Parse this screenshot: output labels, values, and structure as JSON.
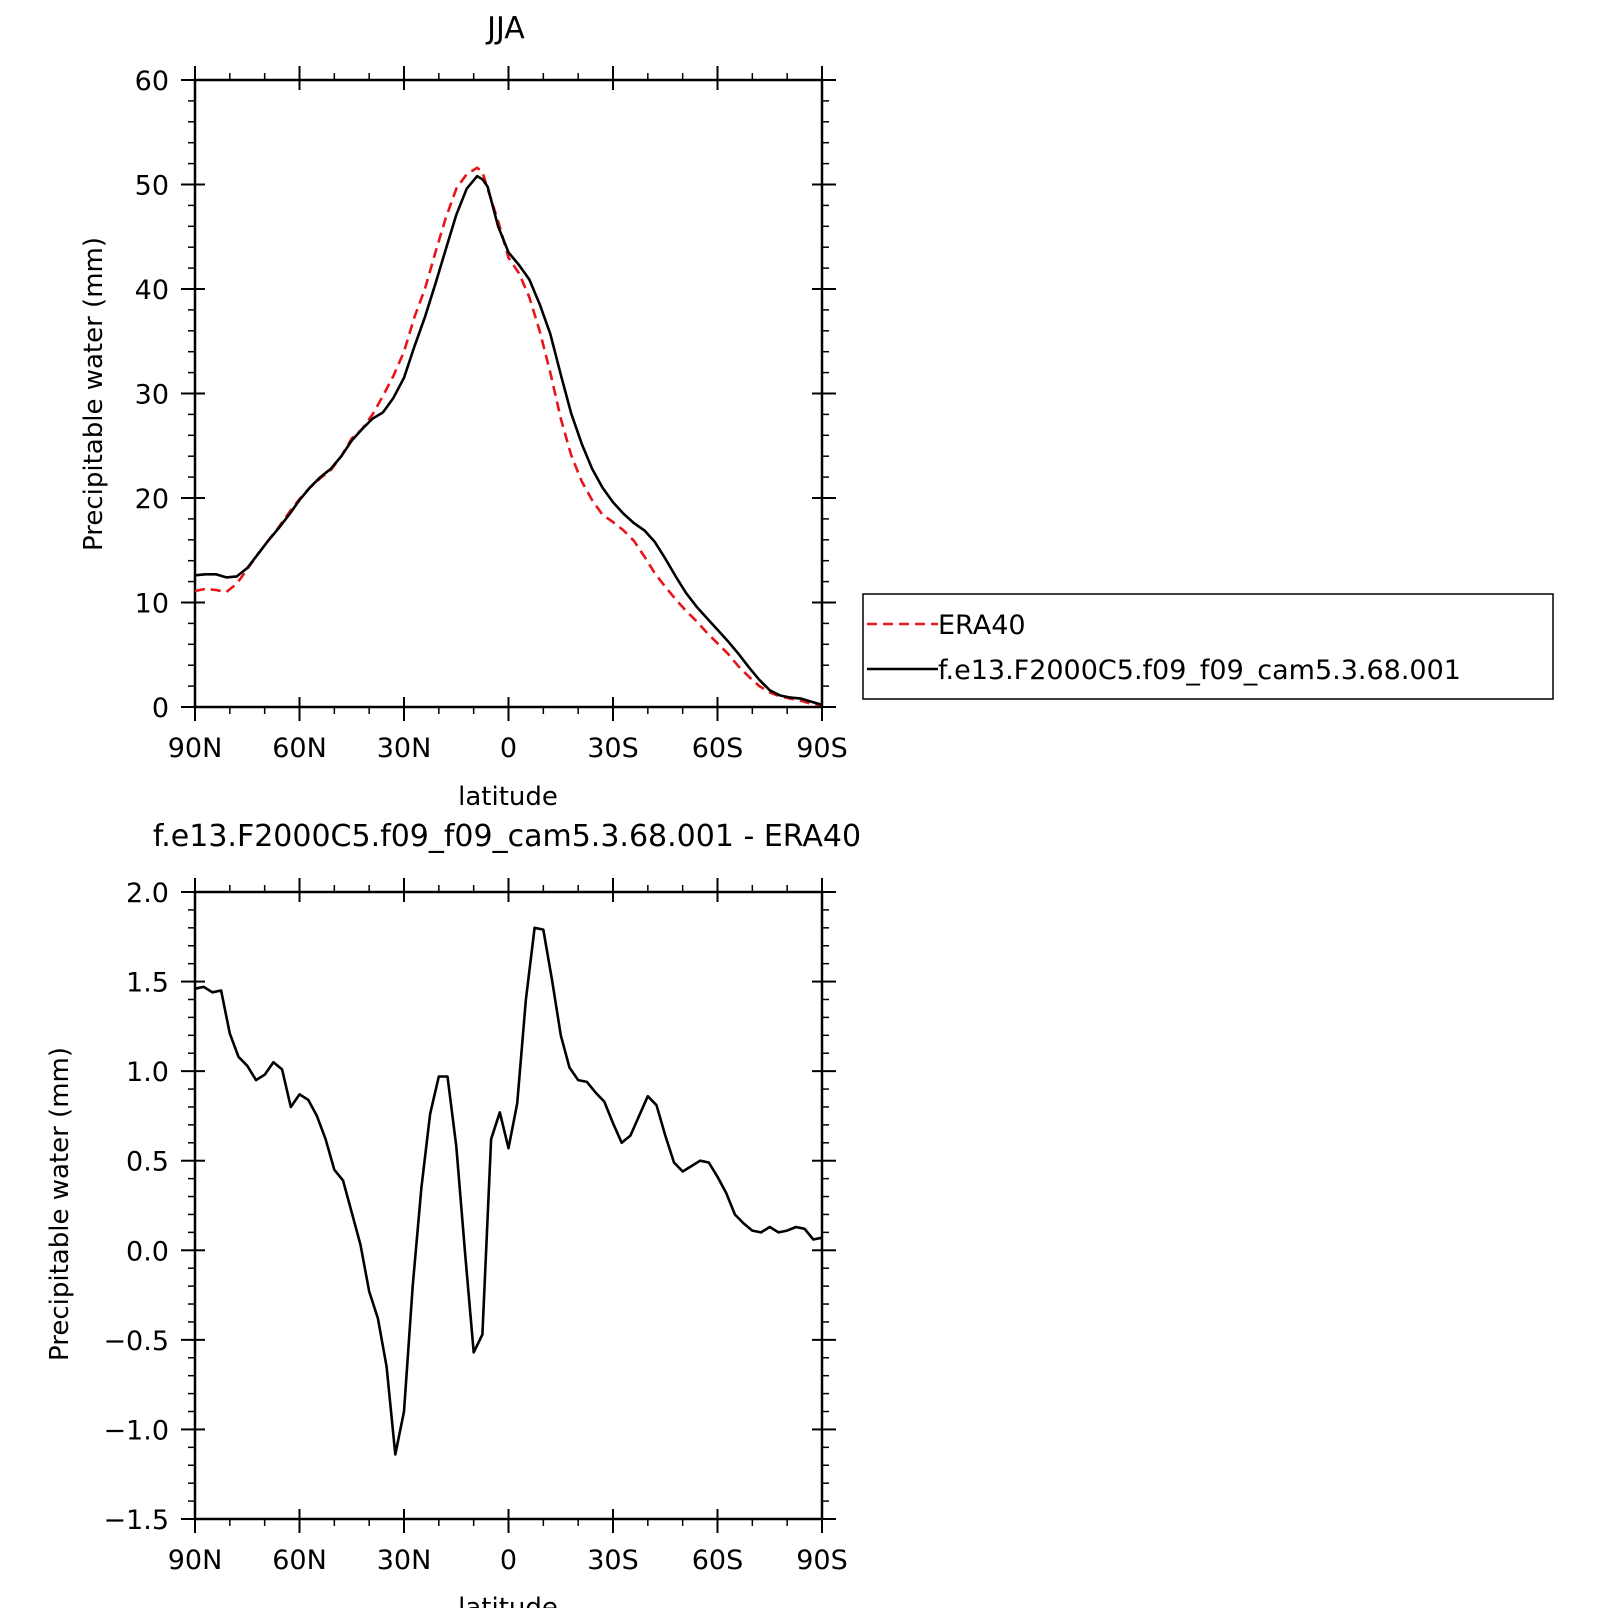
{
  "chart_data": [
    {
      "type": "line",
      "title": "JJA",
      "xlabel": "latitude",
      "ylabel": "Precipitable water (mm)",
      "xlim": [
        90,
        -90
      ],
      "ylim": [
        0,
        60
      ],
      "x_ticks": [
        {
          "value": 90,
          "label": "90N"
        },
        {
          "value": 60,
          "label": "60N"
        },
        {
          "value": 30,
          "label": "30N"
        },
        {
          "value": 0,
          "label": "0"
        },
        {
          "value": -30,
          "label": "30S"
        },
        {
          "value": -60,
          "label": "60S"
        },
        {
          "value": -90,
          "label": "90S"
        }
      ],
      "y_ticks": [
        {
          "value": 0,
          "label": "0"
        },
        {
          "value": 10,
          "label": "10"
        },
        {
          "value": 20,
          "label": "20"
        },
        {
          "value": 30,
          "label": "30"
        },
        {
          "value": 40,
          "label": "40"
        },
        {
          "value": 50,
          "label": "50"
        },
        {
          "value": 60,
          "label": "60"
        }
      ],
      "legend_position": "right",
      "series": [
        {
          "name": "ERA40",
          "color": "#e8141a",
          "dash": "dashed",
          "x": [
            90,
            87,
            84,
            81,
            78,
            75,
            72,
            69,
            66,
            63,
            60,
            57,
            54,
            51,
            48,
            45,
            42,
            39,
            36,
            33,
            30,
            27,
            24,
            21,
            18,
            15,
            12,
            9,
            7.5,
            6,
            3,
            0,
            -3,
            -6,
            -9,
            -12,
            -15,
            -18,
            -21,
            -24,
            -27,
            -30,
            -33,
            -36,
            -39,
            -42,
            -45,
            -48,
            -51,
            -54,
            -57,
            -60,
            -63,
            -66,
            -69,
            -72,
            -75,
            -78,
            -81,
            -84,
            -87,
            -90
          ],
          "y": [
            11.1,
            11.3,
            11.2,
            11.0,
            11.8,
            13.2,
            14.6,
            15.9,
            17.2,
            18.6,
            19.9,
            21.0,
            21.9,
            22.7,
            24.0,
            25.7,
            26.6,
            28.0,
            29.8,
            31.7,
            34.0,
            37.3,
            40.0,
            43.5,
            46.8,
            49.6,
            51.0,
            51.6,
            51.2,
            49.6,
            46.5,
            43.0,
            41.5,
            39.2,
            35.9,
            32.0,
            27.6,
            24.1,
            21.6,
            19.8,
            18.4,
            17.7,
            16.9,
            15.9,
            14.4,
            12.8,
            11.5,
            10.3,
            9.2,
            8.2,
            7.1,
            6.1,
            5.1,
            3.9,
            2.9,
            2.0,
            1.4,
            1.0,
            0.8,
            0.6,
            0.3,
            0.2
          ]
        },
        {
          "name": "f.e13.F2000C5.f09_f09_cam5.3.68.001",
          "color": "#000000",
          "dash": "solid",
          "x": [
            90,
            87,
            84,
            81,
            78,
            75,
            72,
            69,
            66,
            63,
            60,
            57,
            54,
            51,
            48,
            45,
            42,
            39,
            36,
            33,
            30,
            27,
            24,
            21,
            18,
            15,
            12,
            9,
            7.5,
            6,
            3,
            0,
            -3,
            -6,
            -9,
            -12,
            -15,
            -18,
            -21,
            -24,
            -27,
            -30,
            -33,
            -36,
            -39,
            -42,
            -45,
            -48,
            -51,
            -54,
            -57,
            -60,
            -63,
            -66,
            -69,
            -72,
            -75,
            -78,
            -81,
            -84,
            -87,
            -90
          ],
          "y": [
            12.6,
            12.7,
            12.7,
            12.4,
            12.5,
            13.3,
            14.6,
            15.9,
            17.1,
            18.4,
            19.8,
            21.0,
            22.0,
            22.8,
            24.0,
            25.5,
            26.6,
            27.6,
            28.2,
            29.6,
            31.5,
            34.5,
            37.3,
            40.5,
            43.8,
            47.1,
            49.6,
            50.8,
            50.5,
            49.8,
            46.0,
            43.5,
            42.3,
            40.9,
            38.5,
            35.7,
            31.8,
            28.1,
            25.2,
            22.8,
            21.0,
            19.6,
            18.5,
            17.6,
            16.9,
            15.8,
            14.2,
            12.5,
            10.9,
            9.6,
            8.5,
            7.4,
            6.3,
            5.1,
            3.8,
            2.6,
            1.6,
            1.1,
            0.9,
            0.8,
            0.5,
            0.2
          ]
        }
      ]
    },
    {
      "type": "line",
      "title": "f.e13.F2000C5.f09_f09_cam5.3.68.001 - ERA40",
      "xlabel": "latitude",
      "ylabel": "Precipitable water (mm)",
      "xlim": [
        90,
        -90
      ],
      "ylim": [
        -1.5,
        2.0
      ],
      "x_ticks": [
        {
          "value": 90,
          "label": "90N"
        },
        {
          "value": 60,
          "label": "60N"
        },
        {
          "value": 30,
          "label": "30N"
        },
        {
          "value": 0,
          "label": "0"
        },
        {
          "value": -30,
          "label": "30S"
        },
        {
          "value": -60,
          "label": "60S"
        },
        {
          "value": -90,
          "label": "90S"
        }
      ],
      "y_ticks": [
        {
          "value": -1.5,
          "label": "−1.5"
        },
        {
          "value": -1.0,
          "label": "−1.0"
        },
        {
          "value": -0.5,
          "label": "−0.5"
        },
        {
          "value": 0.0,
          "label": "0.0"
        },
        {
          "value": 0.5,
          "label": "0.5"
        },
        {
          "value": 1.0,
          "label": "1.0"
        },
        {
          "value": 1.5,
          "label": "1.5"
        },
        {
          "value": 2.0,
          "label": "2.0"
        }
      ],
      "series": [
        {
          "color": "#000000",
          "dash": "solid",
          "x": [
            90,
            87.5,
            85,
            82.5,
            80,
            77.5,
            75,
            72.5,
            70,
            67.5,
            65,
            62.5,
            60,
            57.5,
            55,
            52.5,
            50,
            47.5,
            45,
            42.5,
            40,
            37.5,
            35,
            32.5,
            30,
            27.5,
            25,
            22.5,
            20,
            17.5,
            15,
            12.5,
            10,
            7.5,
            5,
            2.5,
            0,
            -2.5,
            -5,
            -7.5,
            -10,
            -12.5,
            -15,
            -17.5,
            -20,
            -22.5,
            -25,
            -27.5,
            -30,
            -32.5,
            -35,
            -37.5,
            -40,
            -42.5,
            -45,
            -47.5,
            -50,
            -52.5,
            -55,
            -57.5,
            -60,
            -62.5,
            -65,
            -67.5,
            -70,
            -72.5,
            -75,
            -77.5,
            -80,
            -82.5,
            -85,
            -87.5,
            -90
          ],
          "y": [
            1.46,
            1.47,
            1.44,
            1.45,
            1.21,
            1.08,
            1.03,
            0.95,
            0.98,
            1.05,
            1.01,
            0.8,
            0.87,
            0.84,
            0.75,
            0.62,
            0.45,
            0.39,
            0.21,
            0.03,
            -0.23,
            -0.38,
            -0.65,
            -1.14,
            -0.9,
            -0.2,
            0.35,
            0.76,
            0.97,
            0.97,
            0.58,
            -0.01,
            -0.57,
            -0.47,
            0.62,
            0.77,
            0.57,
            0.82,
            1.4,
            1.8,
            1.79,
            1.51,
            1.2,
            1.02,
            0.95,
            0.94,
            0.88,
            0.83,
            0.71,
            0.6,
            0.64,
            0.75,
            0.86,
            0.81,
            0.64,
            0.49,
            0.44,
            0.47,
            0.5,
            0.49,
            0.41,
            0.32,
            0.2,
            0.15,
            0.11,
            0.1,
            0.13,
            0.1,
            0.11,
            0.13,
            0.12,
            0.06,
            0.07
          ]
        }
      ]
    }
  ]
}
